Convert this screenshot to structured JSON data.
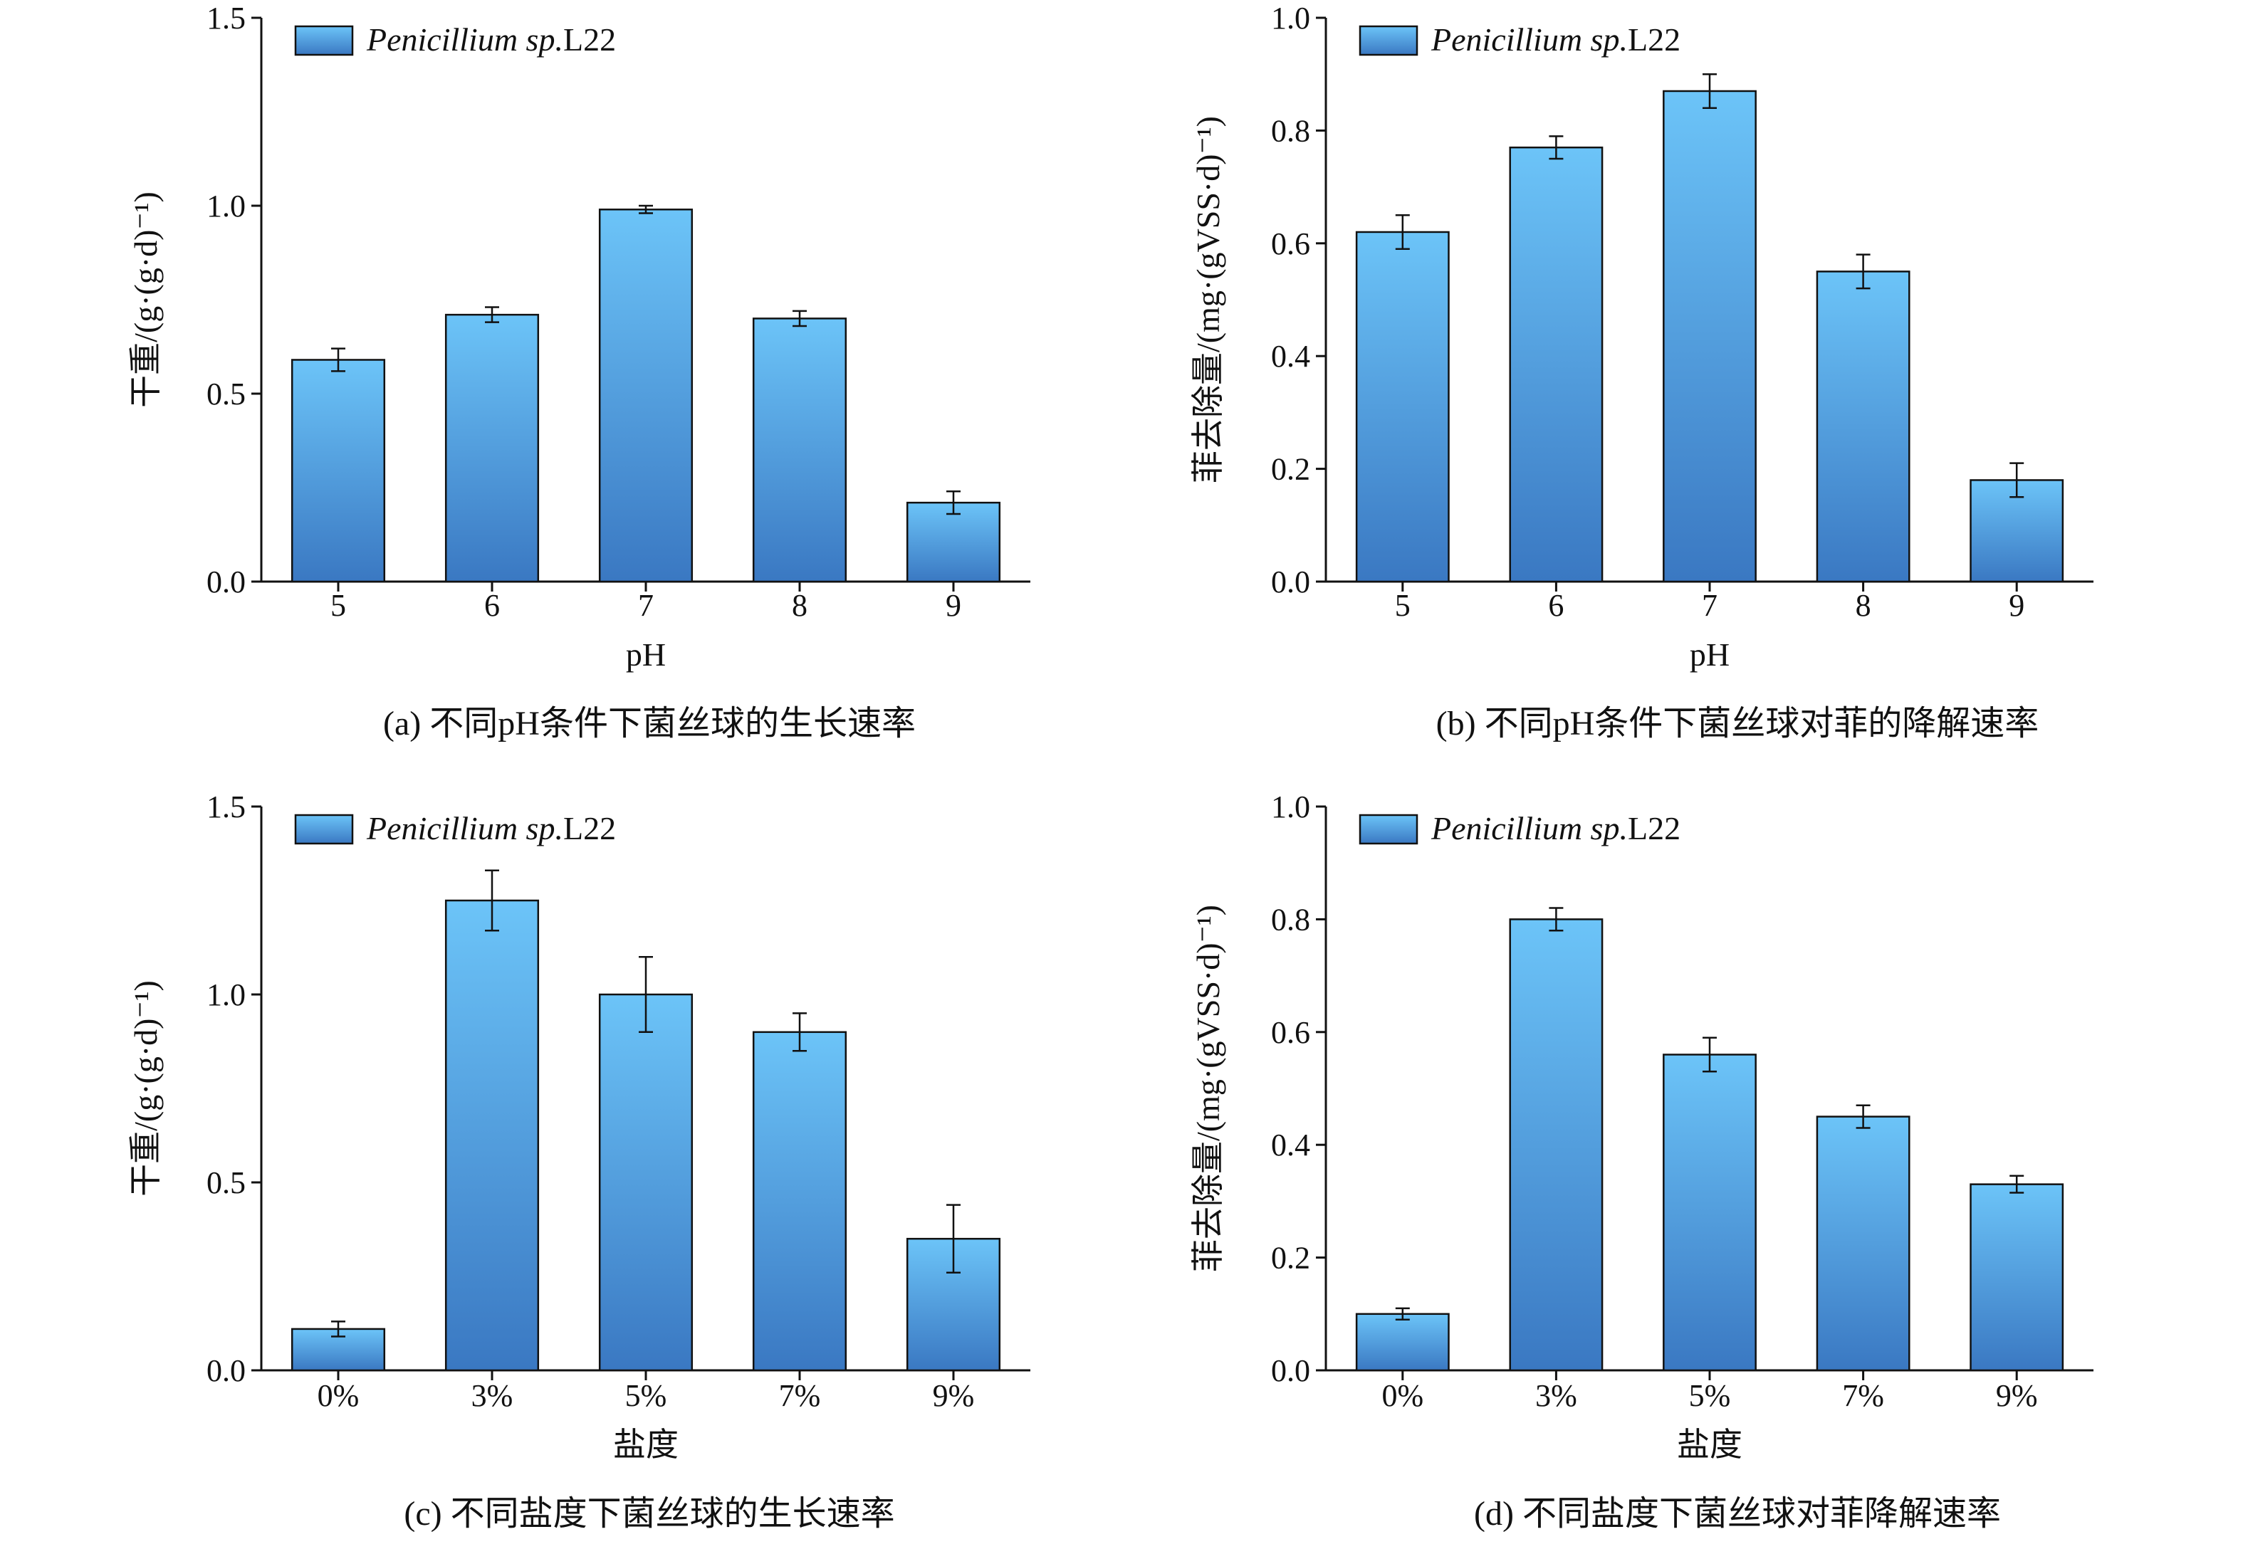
{
  "chart_data": [
    {
      "type": "bar",
      "id": "a",
      "caption": "(a) 不同pH条件下菌丝球的生长速率",
      "xlabel": "pH",
      "ylabel": "干重/(g·(g·d)⁻¹)",
      "categories": [
        "5",
        "6",
        "7",
        "8",
        "9"
      ],
      "ylim": [
        0,
        1.5
      ],
      "yticks": [
        "0.0",
        "0.5",
        "1.0",
        "1.5"
      ],
      "legend_position": "top-left",
      "series": [
        {
          "name": "Penicillium sp.L22",
          "values": [
            0.59,
            0.71,
            0.99,
            0.7,
            0.21
          ],
          "errors": [
            0.03,
            0.02,
            0.01,
            0.02,
            0.03
          ]
        }
      ]
    },
    {
      "type": "bar",
      "id": "b",
      "caption": "(b) 不同pH条件下菌丝球对菲的降解速率",
      "xlabel": "pH",
      "ylabel": "菲去除量/(mg·(gVSS·d)⁻¹)",
      "categories": [
        "5",
        "6",
        "7",
        "8",
        "9"
      ],
      "ylim": [
        0,
        1.0
      ],
      "yticks": [
        "0.0",
        "0.2",
        "0.4",
        "0.6",
        "0.8",
        "1.0"
      ],
      "legend_position": "top-left",
      "series": [
        {
          "name": "Penicillium sp.L22",
          "values": [
            0.62,
            0.77,
            0.87,
            0.55,
            0.18
          ],
          "errors": [
            0.03,
            0.02,
            0.03,
            0.03,
            0.03
          ]
        }
      ]
    },
    {
      "type": "bar",
      "id": "c",
      "caption": "(c) 不同盐度下菌丝球的生长速率",
      "xlabel": "盐度",
      "ylabel": "干重/(g·(g·d)⁻¹)",
      "categories": [
        "0%",
        "3%",
        "5%",
        "7%",
        "9%"
      ],
      "ylim": [
        0,
        1.5
      ],
      "yticks": [
        "0.0",
        "0.5",
        "1.0",
        "1.5"
      ],
      "legend_position": "top-left",
      "series": [
        {
          "name": "Penicillium sp.L22",
          "values": [
            0.11,
            1.25,
            1.0,
            0.9,
            0.35
          ],
          "errors": [
            0.02,
            0.08,
            0.1,
            0.05,
            0.09
          ]
        }
      ]
    },
    {
      "type": "bar",
      "id": "d",
      "caption": "(d) 不同盐度下菌丝球对菲降解速率",
      "xlabel": "盐度",
      "ylabel": "菲去除量/(mg·(gVSS·d)⁻¹)",
      "categories": [
        "0%",
        "3%",
        "5%",
        "7%",
        "9%"
      ],
      "ylim": [
        0,
        1.0
      ],
      "yticks": [
        "0.0",
        "0.2",
        "0.4",
        "0.6",
        "0.8",
        "1.0"
      ],
      "legend_position": "top-left",
      "series": [
        {
          "name": "Penicillium sp.L22",
          "values": [
            0.1,
            0.8,
            0.56,
            0.45,
            0.33
          ],
          "errors": [
            0.01,
            0.02,
            0.03,
            0.02,
            0.015
          ]
        }
      ]
    }
  ],
  "colors": {
    "bar_top": "#6cc4f8",
    "bar_bottom": "#3a78c2",
    "bar_stroke": "#111111",
    "axis": "#111111"
  },
  "legend": {
    "italic_part": "Penicillium sp.",
    "plain_part": "L22"
  }
}
